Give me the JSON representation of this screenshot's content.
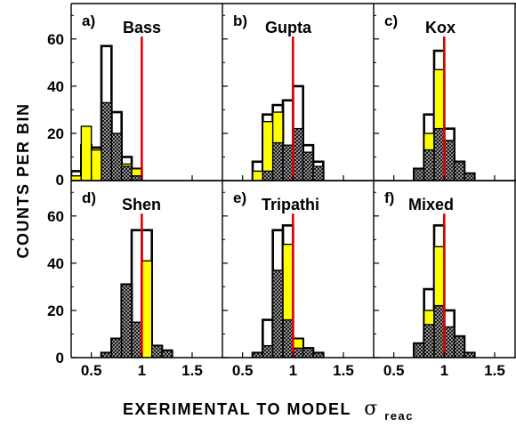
{
  "chart_data": [
    {
      "type": "bar",
      "letter": "a)",
      "name": "Bass",
      "bin_edges": [
        0.3,
        0.4,
        0.5,
        0.6,
        0.7,
        0.8,
        0.9,
        1.0,
        1.1
      ],
      "series": [
        {
          "name": "",
          "fill": "none",
          "values": [
            4,
            15,
            14,
            57,
            29,
            10,
            5,
            0
          ]
        },
        {
          "name": "",
          "fill": "cross-hatch",
          "values": [
            0,
            0,
            0,
            33,
            20,
            6,
            2,
            0
          ]
        },
        {
          "name": "",
          "fill": "yellow",
          "values": [
            2,
            23,
            13,
            0,
            0,
            7,
            5,
            0
          ]
        }
      ],
      "reference_line_x": 1.0
    },
    {
      "type": "bar",
      "letter": "b)",
      "name": "Gupta",
      "bin_edges": [
        0.6,
        0.7,
        0.8,
        0.9,
        1.0,
        1.1,
        1.2,
        1.3
      ],
      "series": [
        {
          "name": "",
          "fill": "none",
          "values": [
            8,
            28,
            32,
            34,
            40,
            15,
            8
          ]
        },
        {
          "name": "",
          "fill": "cross-hatch",
          "values": [
            0,
            4,
            16,
            15,
            22,
            12,
            6
          ]
        },
        {
          "name": "",
          "fill": "yellow",
          "values": [
            4,
            25,
            29,
            9,
            5,
            5,
            2
          ]
        }
      ],
      "reference_line_x": 1.0
    },
    {
      "type": "bar",
      "letter": "c)",
      "name": "Kox",
      "bin_edges": [
        0.7,
        0.8,
        0.9,
        1.0,
        1.1,
        1.2,
        1.3
      ],
      "series": [
        {
          "name": "",
          "fill": "none",
          "values": [
            5,
            28,
            55,
            22,
            8,
            3
          ]
        },
        {
          "name": "",
          "fill": "cross-hatch",
          "values": [
            5,
            13,
            22,
            17,
            8,
            3
          ]
        },
        {
          "name": "",
          "fill": "yellow",
          "values": [
            0,
            20,
            47,
            5,
            0,
            0
          ]
        }
      ],
      "reference_line_x": 1.0
    },
    {
      "type": "bar",
      "letter": "d)",
      "name": "Shen",
      "bin_edges": [
        0.6,
        0.7,
        0.8,
        0.9,
        1.0,
        1.1,
        1.2,
        1.3
      ],
      "series": [
        {
          "name": "",
          "fill": "none",
          "values": [
            2,
            8,
            31,
            54,
            54,
            5,
            3
          ]
        },
        {
          "name": "",
          "fill": "cross-hatch",
          "values": [
            2,
            8,
            31,
            15,
            0,
            5,
            3
          ]
        },
        {
          "name": "",
          "fill": "yellow",
          "values": [
            0,
            0,
            0,
            0,
            41,
            0,
            0
          ]
        }
      ],
      "reference_line_x": 1.0
    },
    {
      "type": "bar",
      "letter": "e)",
      "name": "Tripathi",
      "bin_edges": [
        0.6,
        0.7,
        0.8,
        0.9,
        1.0,
        1.1,
        1.2,
        1.3
      ],
      "series": [
        {
          "name": "",
          "fill": "none",
          "values": [
            2,
            16,
            54,
            56,
            8,
            4,
            2
          ]
        },
        {
          "name": "",
          "fill": "cross-hatch",
          "values": [
            2,
            5,
            37,
            16,
            4,
            4,
            2
          ]
        },
        {
          "name": "",
          "fill": "yellow",
          "values": [
            0,
            0,
            0,
            48,
            8,
            0,
            0
          ]
        }
      ],
      "reference_line_x": 1.0
    },
    {
      "type": "bar",
      "letter": "f)",
      "name": "Mixed",
      "bin_edges": [
        0.7,
        0.8,
        0.9,
        1.0,
        1.1,
        1.2,
        1.3
      ],
      "series": [
        {
          "name": "",
          "fill": "none",
          "values": [
            6,
            29,
            56,
            20,
            9,
            2
          ]
        },
        {
          "name": "",
          "fill": "cross-hatch",
          "values": [
            6,
            14,
            22,
            13,
            9,
            2
          ]
        },
        {
          "name": "",
          "fill": "yellow",
          "values": [
            0,
            20,
            47,
            5,
            0,
            0
          ]
        }
      ],
      "reference_line_x": 1.0
    }
  ],
  "axes": {
    "x_range": [
      0.3,
      1.8
    ],
    "y_range": [
      0,
      75
    ],
    "x_ticks": [
      "0.5",
      "1",
      "1.5"
    ],
    "x_tick_values": [
      0.5,
      1.0,
      1.5
    ],
    "y_ticks": [
      "0",
      "20",
      "40",
      "60"
    ],
    "y_tick_values": [
      0,
      20,
      40,
      60
    ],
    "y_minor_tick_values": [
      10,
      30,
      50,
      70
    ]
  },
  "labels": {
    "y_title": "COUNTS  PER  BIN",
    "x_title": "EXERIMENTAL  TO  MODEL",
    "x_title_symbol": "σ",
    "x_title_subscript": "reac"
  },
  "colors": {
    "yellow_fill": "#ffff00",
    "reference_line": "#e00000",
    "outline": "#000000",
    "hatch": "#000000"
  }
}
